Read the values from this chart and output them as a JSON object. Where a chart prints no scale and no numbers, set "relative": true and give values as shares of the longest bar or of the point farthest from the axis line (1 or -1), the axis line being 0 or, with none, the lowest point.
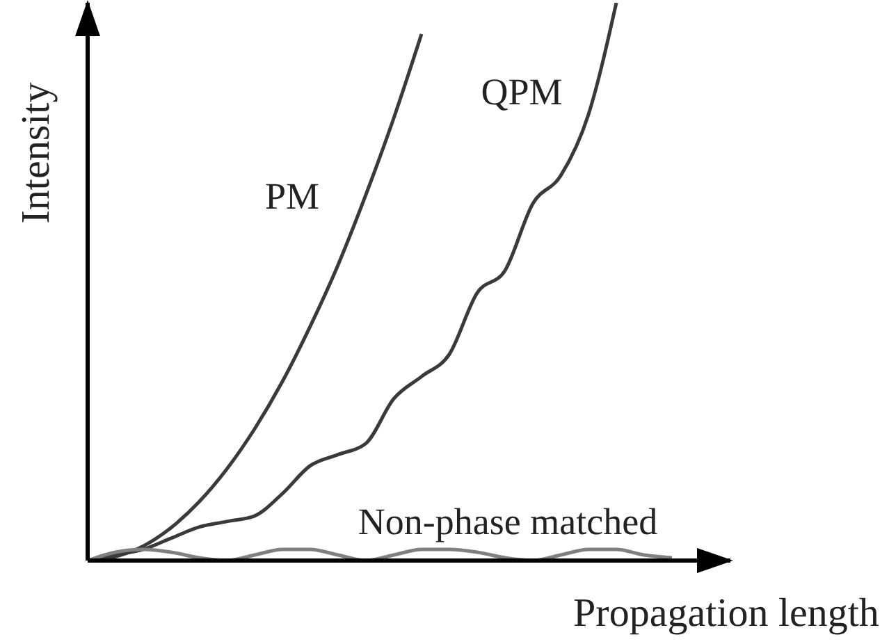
{
  "chart_data": {
    "type": "line",
    "relative": true,
    "xlabel": "Propagation length",
    "ylabel": "Intensity",
    "marker": "none",
    "line_style": "solid",
    "categories": [
      null,
      null,
      null,
      null,
      null,
      null,
      null,
      null,
      null,
      null,
      null,
      null,
      null,
      null,
      null,
      null,
      null,
      null,
      null,
      null,
      null,
      null
    ],
    "series": [
      {
        "name": "PM",
        "color": "#3a3a3a",
        "values": [
          0,
          0.007,
          0.026,
          0.059,
          0.105,
          0.164,
          0.236,
          0.321,
          0.42,
          0.53,
          0.656,
          0.793,
          0.944,
          null,
          null,
          null,
          null,
          null,
          null,
          null,
          null,
          null
        ]
      },
      {
        "name": "QPM",
        "color": "#3a3a3a",
        "values": [
          0,
          0.01,
          0.02,
          0.04,
          0.06,
          0.07,
          0.08,
          0.12,
          0.17,
          0.19,
          0.21,
          0.29,
          0.33,
          0.37,
          0.48,
          0.52,
          0.64,
          0.69,
          0.8,
          1,
          null,
          null
        ]
      },
      {
        "name": "Non-phase matched",
        "color": "#808080",
        "values": [
          0,
          0.015,
          0.02,
          0.015,
          0.005,
          0,
          0.01,
          0.02,
          0.02,
          0.01,
          0,
          0.01,
          0.02,
          0.02,
          0.015,
          0.005,
          0,
          0.01,
          0.02,
          0.02,
          0.01,
          0.005
        ]
      }
    ]
  }
}
